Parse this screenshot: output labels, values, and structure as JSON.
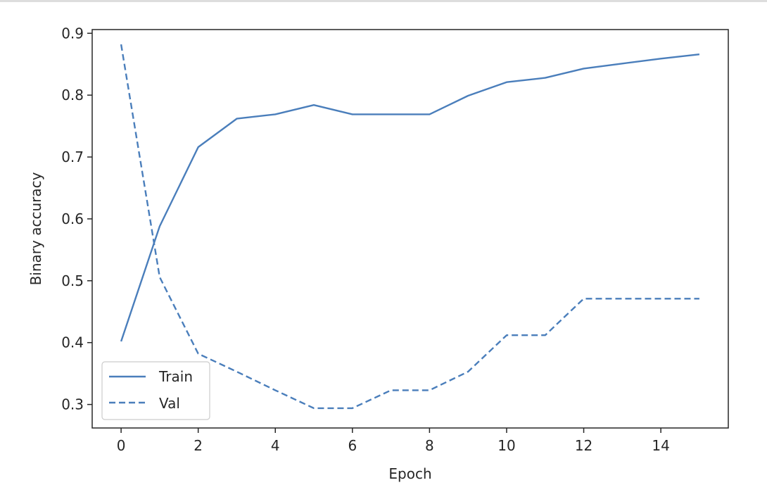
{
  "chart_data": {
    "type": "line",
    "title": "",
    "xlabel": "Epoch",
    "ylabel": "Binary accuracy",
    "xlim": [
      -0.75,
      15.75
    ],
    "ylim": [
      0.262,
      0.906
    ],
    "xticks": [
      0,
      2,
      4,
      6,
      8,
      10,
      12,
      14
    ],
    "xtick_labels": [
      "0",
      "2",
      "4",
      "6",
      "8",
      "10",
      "12",
      "14"
    ],
    "yticks": [
      0.3,
      0.4,
      0.5,
      0.6,
      0.7,
      0.8,
      0.9
    ],
    "ytick_labels": [
      "0.3",
      "0.4",
      "0.5",
      "0.6",
      "0.7",
      "0.8",
      "0.9"
    ],
    "grid": false,
    "legend_position": "lower-left",
    "x": [
      0,
      1,
      2,
      3,
      4,
      5,
      6,
      7,
      8,
      9,
      10,
      11,
      12,
      13,
      14,
      15
    ],
    "series": [
      {
        "name": "Train",
        "style": "solid",
        "color": "#4a7ebb",
        "values": [
          0.402,
          0.588,
          0.716,
          0.762,
          0.769,
          0.784,
          0.769,
          0.769,
          0.769,
          0.799,
          0.821,
          0.828,
          0.843,
          0.851,
          0.859,
          0.866
        ]
      },
      {
        "name": "Val",
        "style": "dashed",
        "color": "#4a7ebb",
        "values": [
          0.882,
          0.506,
          0.382,
          0.353,
          0.323,
          0.294,
          0.294,
          0.323,
          0.323,
          0.353,
          0.412,
          0.412,
          0.471,
          0.471,
          0.471,
          0.471
        ]
      }
    ]
  }
}
